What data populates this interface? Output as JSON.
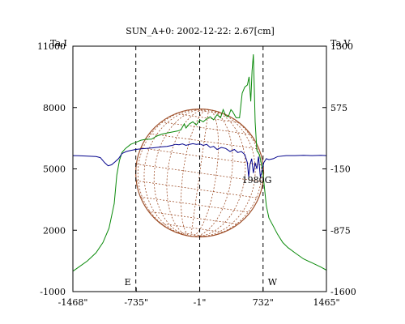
{
  "chart_data": {
    "type": "line",
    "title": "SUN_A+0: 2002-12-22: 2.67[cm]",
    "left_axis_label": "Ta,I",
    "right_axis_label": "Ta,V",
    "x_ticks": [
      {
        "value": -1468,
        "label": "-1468\""
      },
      {
        "value": -735,
        "label": "-735\""
      },
      {
        "value": -1,
        "label": "-1\""
      },
      {
        "value": 732,
        "label": "732\""
      },
      {
        "value": 1465,
        "label": "1465\""
      }
    ],
    "xlim": [
      -1468,
      1465
    ],
    "left_ylim": [
      -1000,
      11000
    ],
    "right_ylim": [
      -1600,
      1300
    ],
    "left_ticks": [
      -1000,
      2000,
      5000,
      8000,
      11000
    ],
    "right_ticks": [
      -1600,
      -875,
      -150,
      575,
      1300
    ],
    "limb_markers": [
      {
        "x": -740,
        "label": "E"
      },
      {
        "x": 732,
        "label": "W"
      }
    ],
    "solar_disk": {
      "center_x": -1,
      "radius_arcsec": 740,
      "center_y_left": 4800
    },
    "annotations": [
      {
        "text": "1980G",
        "x": 660,
        "y_left": 4300
      }
    ],
    "series": [
      {
        "axis": "left",
        "color": "#0a8a0a",
        "points": [
          [
            -1468,
            0
          ],
          [
            -1400,
            200
          ],
          [
            -1300,
            500
          ],
          [
            -1200,
            900
          ],
          [
            -1120,
            1400
          ],
          [
            -1050,
            2100
          ],
          [
            -990,
            3300
          ],
          [
            -960,
            4700
          ],
          [
            -930,
            5400
          ],
          [
            -900,
            5800
          ],
          [
            -860,
            6000
          ],
          [
            -800,
            6200
          ],
          [
            -740,
            6300
          ],
          [
            -680,
            6400
          ],
          [
            -620,
            6450
          ],
          [
            -560,
            6450
          ],
          [
            -500,
            6600
          ],
          [
            -440,
            6700
          ],
          [
            -380,
            6750
          ],
          [
            -320,
            6800
          ],
          [
            -260,
            6850
          ],
          [
            -220,
            6900
          ],
          [
            -180,
            7200
          ],
          [
            -160,
            7000
          ],
          [
            -120,
            7200
          ],
          [
            -80,
            7300
          ],
          [
            -40,
            7150
          ],
          [
            0,
            7400
          ],
          [
            40,
            7300
          ],
          [
            80,
            7450
          ],
          [
            120,
            7550
          ],
          [
            160,
            7400
          ],
          [
            200,
            7650
          ],
          [
            240,
            7500
          ],
          [
            270,
            7900
          ],
          [
            300,
            7600
          ],
          [
            330,
            7550
          ],
          [
            360,
            7900
          ],
          [
            380,
            7800
          ],
          [
            420,
            7500
          ],
          [
            460,
            7500
          ],
          [
            490,
            8700
          ],
          [
            520,
            9000
          ],
          [
            550,
            9100
          ],
          [
            570,
            9500
          ],
          [
            590,
            8300
          ],
          [
            605,
            9800
          ],
          [
            620,
            10600
          ],
          [
            630,
            9000
          ],
          [
            640,
            7300
          ],
          [
            660,
            5900
          ],
          [
            690,
            5700
          ],
          [
            710,
            5300
          ],
          [
            730,
            4800
          ],
          [
            750,
            4000
          ],
          [
            770,
            3200
          ],
          [
            800,
            2600
          ],
          [
            850,
            2200
          ],
          [
            900,
            1800
          ],
          [
            960,
            1400
          ],
          [
            1020,
            1150
          ],
          [
            1100,
            900
          ],
          [
            1200,
            600
          ],
          [
            1300,
            400
          ],
          [
            1400,
            200
          ],
          [
            1465,
            50
          ]
        ]
      },
      {
        "axis": "left",
        "color": "#00008b",
        "points": [
          [
            -1468,
            5650
          ],
          [
            -1400,
            5640
          ],
          [
            -1300,
            5620
          ],
          [
            -1200,
            5600
          ],
          [
            -1150,
            5550
          ],
          [
            -1100,
            5300
          ],
          [
            -1060,
            5150
          ],
          [
            -1020,
            5200
          ],
          [
            -980,
            5350
          ],
          [
            -940,
            5500
          ],
          [
            -900,
            5750
          ],
          [
            -850,
            5850
          ],
          [
            -800,
            5900
          ],
          [
            -740,
            5950
          ],
          [
            -680,
            5980
          ],
          [
            -620,
            6000
          ],
          [
            -560,
            6020
          ],
          [
            -500,
            6050
          ],
          [
            -440,
            6080
          ],
          [
            -380,
            6100
          ],
          [
            -320,
            6150
          ],
          [
            -280,
            6200
          ],
          [
            -240,
            6180
          ],
          [
            -200,
            6220
          ],
          [
            -160,
            6150
          ],
          [
            -120,
            6200
          ],
          [
            -80,
            6230
          ],
          [
            -40,
            6200
          ],
          [
            0,
            6220
          ],
          [
            40,
            6150
          ],
          [
            80,
            6200
          ],
          [
            120,
            6050
          ],
          [
            160,
            6100
          ],
          [
            200,
            5950
          ],
          [
            250,
            6050
          ],
          [
            300,
            6000
          ],
          [
            350,
            5850
          ],
          [
            400,
            5950
          ],
          [
            440,
            5800
          ],
          [
            480,
            5850
          ],
          [
            520,
            5700
          ],
          [
            550,
            5300
          ],
          [
            565,
            4600
          ],
          [
            580,
            5200
          ],
          [
            600,
            5500
          ],
          [
            620,
            4800
          ],
          [
            640,
            5300
          ],
          [
            660,
            5000
          ],
          [
            680,
            5600
          ],
          [
            700,
            4600
          ],
          [
            720,
            4900
          ],
          [
            740,
            5300
          ],
          [
            770,
            5500
          ],
          [
            800,
            5450
          ],
          [
            850,
            5500
          ],
          [
            900,
            5600
          ],
          [
            1000,
            5650
          ],
          [
            1100,
            5650
          ],
          [
            1200,
            5660
          ],
          [
            1300,
            5650
          ],
          [
            1400,
            5660
          ],
          [
            1465,
            5650
          ]
        ]
      }
    ]
  }
}
